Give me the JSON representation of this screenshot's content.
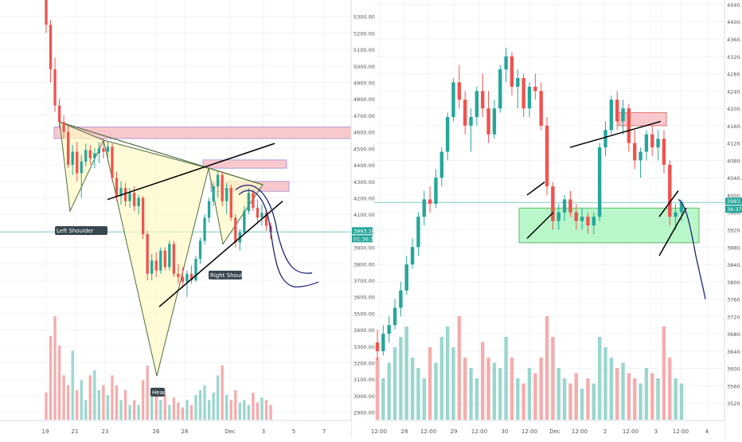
{
  "chart_data": [
    {
      "type": "candlestick",
      "title": "",
      "panel": "left",
      "ylim": [
        2850,
        5400
      ],
      "y_ticks": [
        2900,
        3000,
        3100,
        3200,
        3300,
        3400,
        3500,
        3600,
        3700,
        3800,
        3900,
        4000,
        4100,
        4200,
        4300,
        4400,
        4500,
        4600,
        4700,
        4800,
        4900,
        5000,
        5100,
        5200,
        5300
      ],
      "y_tick_labels": [
        "2900.00",
        "3000.00",
        "3100.00",
        "3200.00",
        "3300.00",
        "3400.00",
        "3500.00",
        "3600.00",
        "3700.00",
        "3800.00",
        "3900.00",
        "4000.00",
        "4100.00",
        "4200.00",
        "4300.00",
        "4400.00",
        "4500.00",
        "4600.00",
        "4700.00",
        "4800.00",
        "4900.00",
        "5000.00",
        "5100.00",
        "5200.00",
        "5300.00"
      ],
      "x_ticks": [
        "19",
        "21",
        "23",
        "26",
        "28",
        "Dec",
        "3",
        "5",
        "7"
      ],
      "price_label": "3993.20",
      "time_label": "01:36:37",
      "current_price": 3993.2,
      "annotations": [
        "Left Shoulder",
        "Head",
        "Right Shoulder"
      ],
      "colors": {
        "up": "#26a69a",
        "down": "#ef5350",
        "triangle": "#fff9c4",
        "zone": "#f8c8cc",
        "line": "#000000",
        "forecast": "#1a237e"
      },
      "candles_ohlc": [
        [
          5400,
          5400,
          5200,
          5250
        ],
        [
          5250,
          5280,
          4900,
          4980
        ],
        [
          4980,
          5050,
          4720,
          4760
        ],
        [
          4760,
          4800,
          4620,
          4660
        ],
        [
          4660,
          4700,
          4560,
          4600
        ],
        [
          4600,
          4640,
          4380,
          4400
        ],
        [
          4400,
          4520,
          4340,
          4480
        ],
        [
          4480,
          4540,
          4300,
          4350
        ],
        [
          4350,
          4460,
          4200,
          4420
        ],
        [
          4420,
          4530,
          4390,
          4490
        ],
        [
          4490,
          4520,
          4400,
          4440
        ],
        [
          4440,
          4500,
          4380,
          4470
        ],
        [
          4470,
          4540,
          4410,
          4500
        ],
        [
          4500,
          4560,
          4440,
          4480
        ],
        [
          4480,
          4540,
          4420,
          4510
        ],
        [
          4510,
          4530,
          4300,
          4320
        ],
        [
          4320,
          4360,
          4180,
          4210
        ],
        [
          4210,
          4300,
          4160,
          4260
        ],
        [
          4260,
          4290,
          4150,
          4180
        ],
        [
          4180,
          4260,
          4140,
          4230
        ],
        [
          4230,
          4270,
          4120,
          4150
        ],
        [
          4150,
          4220,
          4100,
          4200
        ],
        [
          4200,
          4210,
          3950,
          3980
        ],
        [
          3980,
          4000,
          3700,
          3740
        ],
        [
          3740,
          3860,
          3700,
          3820
        ],
        [
          3820,
          3870,
          3720,
          3760
        ],
        [
          3760,
          3900,
          3740,
          3880
        ],
        [
          3880,
          3900,
          3760,
          3780
        ],
        [
          3780,
          3940,
          3760,
          3920
        ],
        [
          3920,
          3940,
          3720,
          3740
        ],
        [
          3740,
          3800,
          3680,
          3720
        ],
        [
          3720,
          3780,
          3650,
          3690
        ],
        [
          3690,
          3760,
          3600,
          3740
        ],
        [
          3740,
          3790,
          3680,
          3700
        ],
        [
          3700,
          3850,
          3690,
          3830
        ],
        [
          3830,
          3960,
          3800,
          3940
        ],
        [
          3940,
          4100,
          3920,
          4080
        ],
        [
          4080,
          4200,
          4050,
          4180
        ],
        [
          4180,
          4290,
          4150,
          4270
        ],
        [
          4270,
          4370,
          4200,
          4340
        ],
        [
          4340,
          4360,
          4150,
          4180
        ],
        [
          4180,
          4290,
          4100,
          4260
        ],
        [
          4260,
          4280,
          4060,
          4080
        ],
        [
          4080,
          4100,
          3900,
          3930
        ],
        [
          3930,
          4010,
          3880,
          3990
        ],
        [
          3990,
          4150,
          3980,
          4120
        ],
        [
          4120,
          4260,
          4100,
          4230
        ],
        [
          4230,
          4250,
          4120,
          4140
        ],
        [
          4140,
          4190,
          4040,
          4080
        ],
        [
          4080,
          4160,
          4030,
          4110
        ],
        [
          4110,
          4130,
          4000,
          4030
        ],
        [
          4030,
          4050,
          3950,
          3993
        ]
      ],
      "volume": [
        55,
        170,
        210,
        150,
        90,
        70,
        140,
        60,
        80,
        40,
        90,
        100,
        60,
        70,
        50,
        90,
        70,
        40,
        60,
        30,
        40,
        30,
        80,
        110,
        60,
        50,
        40,
        60,
        30,
        45,
        35,
        25,
        40,
        30,
        50,
        60,
        70,
        40,
        55,
        90,
        110,
        50,
        40,
        60,
        35,
        40,
        30,
        55,
        35,
        45,
        40,
        30
      ]
    },
    {
      "type": "candlestick",
      "title": "",
      "panel": "right",
      "ylim": [
        3480,
        4450
      ],
      "y_ticks": [
        3520,
        3560,
        3600,
        3640,
        3680,
        3720,
        3760,
        3800,
        3840,
        3880,
        3920,
        3960,
        4000,
        4040,
        4080,
        4120,
        4160,
        4200,
        4240,
        4280,
        4320,
        4360,
        4400,
        4440
      ],
      "y_tick_labels": [
        "3520.0",
        "3560.0",
        "3600.0",
        "3640.0",
        "3680.0",
        "3720.0",
        "3760.0",
        "3800.0",
        "3840.0",
        "3880.0",
        "3920.0",
        "3960.0",
        "4000.0",
        "4040.0",
        "4080.0",
        "4120.0",
        "4160.0",
        "4200.0",
        "4240.0",
        "4280.0",
        "4320.0",
        "4360.0",
        "4400.0",
        "4440.0"
      ],
      "x_ticks": [
        "12:00",
        "28",
        "12:00",
        "29",
        "12:00",
        "30",
        "12:00",
        "Dec",
        "12:00",
        "2",
        "12:00",
        "3",
        "12:00",
        "4"
      ],
      "price_label": "3983.0",
      "time_label": "36:37",
      "current_price": 3983,
      "colors": {
        "up": "#26a69a",
        "down": "#ef5350",
        "zone_green": "#b9f6ca",
        "zone_red": "#f8c8cc",
        "line": "#000000",
        "forecast": "#1a237e"
      },
      "candles_ohlc": [
        [
          3660,
          3690,
          3620,
          3640
        ],
        [
          3640,
          3700,
          3630,
          3680
        ],
        [
          3680,
          3720,
          3660,
          3700
        ],
        [
          3700,
          3760,
          3690,
          3740
        ],
        [
          3740,
          3800,
          3720,
          3780
        ],
        [
          3780,
          3860,
          3770,
          3840
        ],
        [
          3840,
          3900,
          3830,
          3880
        ],
        [
          3880,
          3960,
          3860,
          3950
        ],
        [
          3950,
          4010,
          3930,
          3990
        ],
        [
          3990,
          4020,
          3960,
          3980
        ],
        [
          3980,
          4060,
          3970,
          4040
        ],
        [
          4040,
          4110,
          4020,
          4100
        ],
        [
          4100,
          4190,
          4080,
          4180
        ],
        [
          4180,
          4270,
          4170,
          4260
        ],
        [
          4260,
          4300,
          4200,
          4220
        ],
        [
          4220,
          4240,
          4140,
          4160
        ],
        [
          4160,
          4200,
          4100,
          4180
        ],
        [
          4180,
          4250,
          4160,
          4240
        ],
        [
          4240,
          4280,
          4180,
          4200
        ],
        [
          4200,
          4240,
          4120,
          4140
        ],
        [
          4140,
          4220,
          4130,
          4200
        ],
        [
          4200,
          4300,
          4190,
          4290
        ],
        [
          4290,
          4340,
          4260,
          4320
        ],
        [
          4320,
          4330,
          4230,
          4250
        ],
        [
          4250,
          4290,
          4200,
          4270
        ],
        [
          4270,
          4280,
          4180,
          4200
        ],
        [
          4200,
          4260,
          4180,
          4250
        ],
        [
          4250,
          4280,
          4220,
          4240
        ],
        [
          4240,
          4260,
          4150,
          4160
        ],
        [
          4160,
          4180,
          4000,
          4020
        ],
        [
          4020,
          4030,
          3920,
          3940
        ],
        [
          3940,
          3980,
          3920,
          3960
        ],
        [
          3960,
          4000,
          3940,
          3990
        ],
        [
          3990,
          4010,
          3950,
          3960
        ],
        [
          3960,
          3980,
          3920,
          3940
        ],
        [
          3940,
          3970,
          3920,
          3950
        ],
        [
          3950,
          3960,
          3910,
          3930
        ],
        [
          3930,
          3960,
          3910,
          3950
        ],
        [
          3950,
          4120,
          3940,
          4110
        ],
        [
          4110,
          4170,
          4090,
          4150
        ],
        [
          4150,
          4230,
          4140,
          4220
        ],
        [
          4220,
          4240,
          4150,
          4170
        ],
        [
          4170,
          4220,
          4140,
          4200
        ],
        [
          4200,
          4210,
          4100,
          4120
        ],
        [
          4120,
          4150,
          4060,
          4080
        ],
        [
          4080,
          4110,
          4040,
          4100
        ],
        [
          4100,
          4150,
          4080,
          4140
        ],
        [
          4140,
          4160,
          4090,
          4110
        ],
        [
          4110,
          4150,
          4080,
          4130
        ],
        [
          4130,
          4150,
          4050,
          4070
        ],
        [
          4070,
          4080,
          3930,
          3950
        ],
        [
          3950,
          3980,
          3920,
          3960
        ],
        [
          3960,
          3990,
          3940,
          3983
        ]
      ],
      "volume": [
        60,
        40,
        55,
        70,
        80,
        90,
        60,
        50,
        40,
        70,
        55,
        80,
        90,
        70,
        100,
        60,
        50,
        40,
        75,
        60,
        55,
        50,
        80,
        60,
        40,
        35,
        50,
        45,
        60,
        100,
        80,
        50,
        40,
        35,
        45,
        30,
        40,
        35,
        80,
        70,
        60,
        50,
        55,
        45,
        40,
        35,
        50,
        45,
        40,
        90,
        60,
        40,
        35
      ]
    }
  ]
}
